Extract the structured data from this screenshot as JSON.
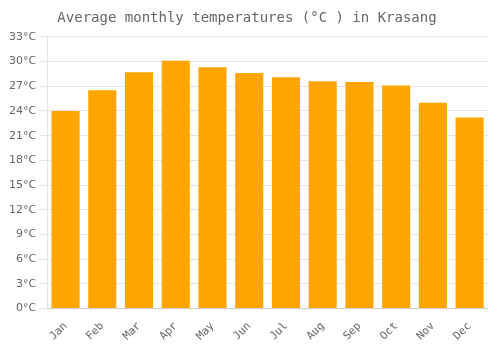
{
  "chart_data": {
    "type": "bar",
    "title": "Average monthly temperatures (°C ) in Krasang",
    "categories": [
      "Jan",
      "Feb",
      "Mar",
      "Apr",
      "May",
      "Jun",
      "Jul",
      "Aug",
      "Sep",
      "Oct",
      "Nov",
      "Dec"
    ],
    "values": [
      24.0,
      26.5,
      28.7,
      30.1,
      29.3,
      28.6,
      28.1,
      27.6,
      27.5,
      27.1,
      25.0,
      23.2
    ],
    "color": "#FFA500",
    "ylim": [
      0,
      33
    ],
    "yticks": [
      {
        "value": 0,
        "label": "0°C"
      },
      {
        "value": 3,
        "label": "3°C"
      },
      {
        "value": 6,
        "label": "6°C"
      },
      {
        "value": 9,
        "label": "9°C"
      },
      {
        "value": 12,
        "label": "12°C"
      },
      {
        "value": 15,
        "label": "15°C"
      },
      {
        "value": 18,
        "label": "18°C"
      },
      {
        "value": 21,
        "label": "21°C"
      },
      {
        "value": 24,
        "label": "24°C"
      },
      {
        "value": 27,
        "label": "27°C"
      },
      {
        "value": 30,
        "label": "30°C"
      },
      {
        "value": 33,
        "label": "33°C"
      }
    ],
    "grid": true
  }
}
